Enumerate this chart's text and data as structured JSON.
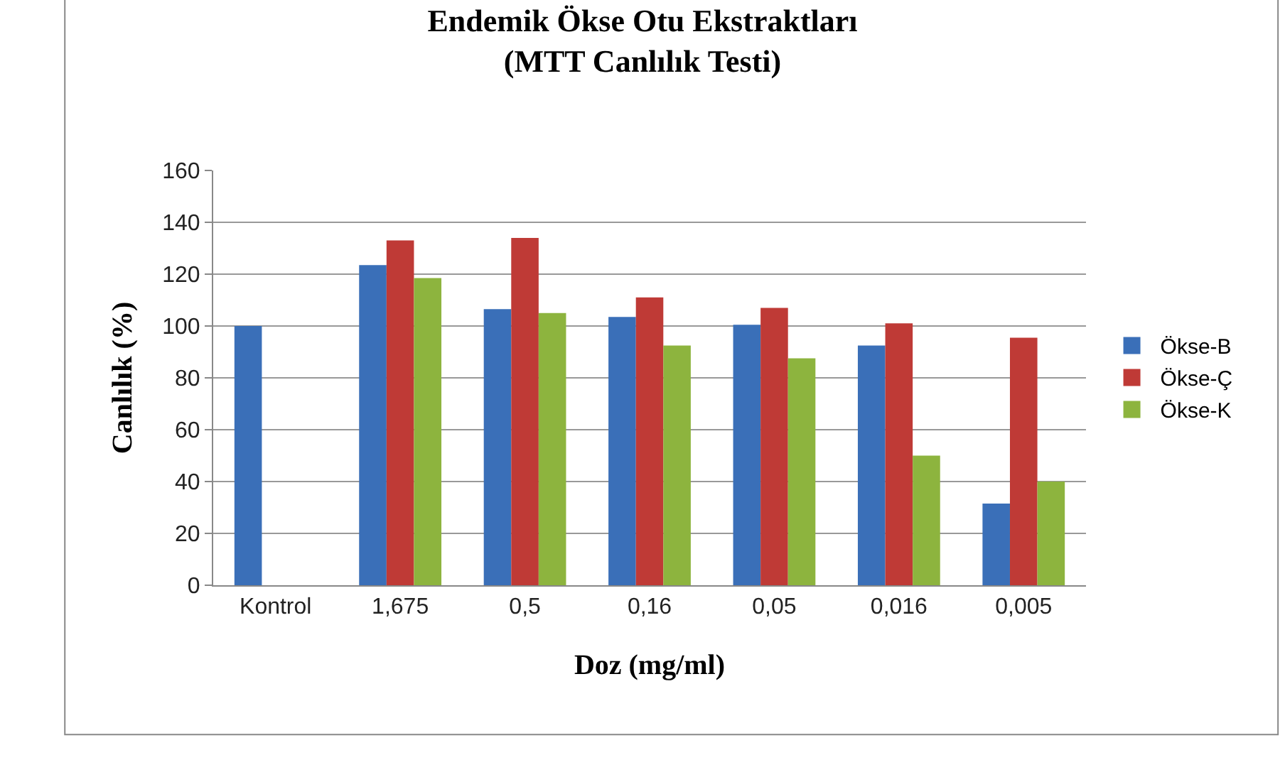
{
  "chart_data": {
    "type": "bar",
    "title": "Endemik Ökse Otu Ekstraktları\n(MTT Canlılık Testi)",
    "xlabel": "Doz (mg/ml)",
    "ylabel": "Canlılık (%)",
    "categories": [
      "Kontrol",
      "1,675",
      "0,5",
      "0,16",
      "0,05",
      "0,016",
      "0,005"
    ],
    "series": [
      {
        "name": "Ökse-B",
        "color": "#3a6fb8",
        "values": [
          100,
          123.5,
          106.5,
          103.5,
          100.5,
          92.5,
          31.5
        ]
      },
      {
        "name": "Ökse-Ç",
        "color": "#bf3a36",
        "values": [
          null,
          133,
          134,
          111,
          107,
          101,
          95.5
        ]
      },
      {
        "name": "Ökse-K",
        "color": "#8db43e",
        "values": [
          null,
          118.5,
          105,
          92.5,
          87.5,
          50,
          40
        ]
      }
    ],
    "ylim": [
      0,
      160
    ],
    "yticks": [
      0,
      20,
      40,
      60,
      80,
      100,
      120,
      140,
      160
    ],
    "grid": "y",
    "legend": "right"
  }
}
